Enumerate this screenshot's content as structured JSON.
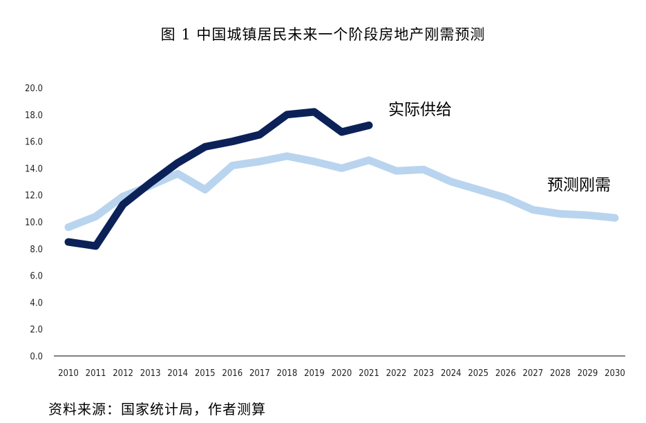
{
  "title": "图 1  中国城镇居民未来一个阶段房地产刚需预测",
  "source": "资料来源：国家统计局，作者测算",
  "colors": {
    "actual": "#0b2158",
    "forecast": "#b9d4ee",
    "axis": "#000000"
  },
  "chart_data": {
    "type": "line",
    "title": "图 1  中国城镇居民未来一个阶段房地产刚需预测",
    "xlabel": "",
    "ylabel": "",
    "x": [
      "2010",
      "2011",
      "2012",
      "2013",
      "2014",
      "2015",
      "2016",
      "2017",
      "2018",
      "2019",
      "2020",
      "2021",
      "2022",
      "2023",
      "2024",
      "2025",
      "2026",
      "2027",
      "2028",
      "2029",
      "2030"
    ],
    "ylim": [
      0,
      20
    ],
    "yticks": [
      "0.0",
      "2.0",
      "4.0",
      "6.0",
      "8.0",
      "10.0",
      "12.0",
      "14.0",
      "16.0",
      "18.0",
      "20.0"
    ],
    "grid": false,
    "legend": "inline labels",
    "series": [
      {
        "name": "实际供给",
        "color": "#0b2158",
        "values": [
          8.5,
          8.2,
          11.3,
          12.9,
          14.4,
          15.6,
          16.0,
          16.5,
          18.0,
          18.2,
          16.7,
          17.2,
          null,
          null,
          null,
          null,
          null,
          null,
          null,
          null,
          null
        ]
      },
      {
        "name": "预测刚需",
        "color": "#b9d4ee",
        "values": [
          9.6,
          10.4,
          11.9,
          12.7,
          13.6,
          12.4,
          14.2,
          14.5,
          14.9,
          14.5,
          14.0,
          14.6,
          13.8,
          13.9,
          13.0,
          12.4,
          11.8,
          10.9,
          10.6,
          10.5,
          10.3
        ]
      }
    ]
  }
}
